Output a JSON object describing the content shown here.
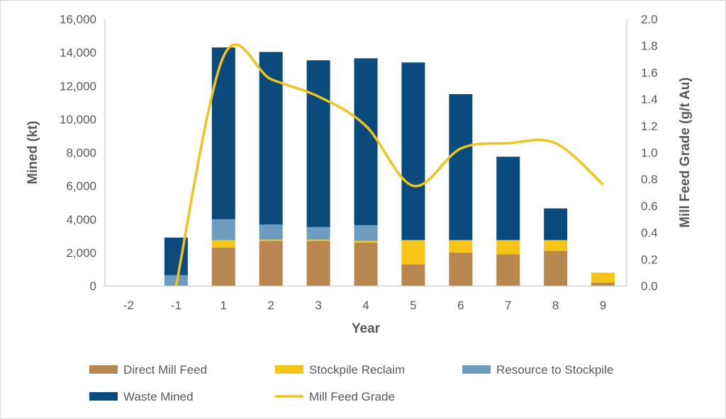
{
  "chart_data": {
    "type": "bar",
    "stacked": true,
    "title": "",
    "xlabel": "Year",
    "ylabel": "Mined (kt)",
    "y2label": "Mill Feed Grade (g/t Au)",
    "categories": [
      "-2",
      "-1",
      "1",
      "2",
      "3",
      "4",
      "5",
      "6",
      "7",
      "8",
      "9"
    ],
    "ylim": [
      0,
      16000
    ],
    "yticks": [
      "0",
      "2,000",
      "4,000",
      "6,000",
      "8,000",
      "10,000",
      "12,000",
      "14,000",
      "16,000"
    ],
    "y2lim": [
      0,
      2.0
    ],
    "y2ticks": [
      "0.0",
      "0.2",
      "0.4",
      "0.6",
      "0.8",
      "1.0",
      "1.2",
      "1.4",
      "1.6",
      "1.8",
      "2.0"
    ],
    "grid": false,
    "legend_position": "bottom",
    "series": [
      {
        "name": "Direct Mill Feed",
        "kind": "bar",
        "color": "#b8874f",
        "values": [
          0,
          0,
          2300,
          2700,
          2700,
          2600,
          1300,
          2000,
          1900,
          2100,
          200
        ]
      },
      {
        "name": "Stockpile Reclaim",
        "kind": "bar",
        "color": "#f5c518",
        "values": [
          0,
          0,
          450,
          80,
          80,
          100,
          1450,
          750,
          850,
          650,
          600
        ]
      },
      {
        "name": "Resource to Stockpile",
        "kind": "bar",
        "color": "#6d9cbf",
        "values": [
          0,
          650,
          1250,
          900,
          750,
          950,
          0,
          0,
          0,
          0,
          0
        ]
      },
      {
        "name": "Waste Mined",
        "kind": "bar",
        "color": "#0b4a7c",
        "values": [
          0,
          2250,
          10300,
          10350,
          10000,
          10000,
          10650,
          8750,
          5000,
          1900,
          0
        ]
      },
      {
        "name": "Mill Feed Grade",
        "kind": "line",
        "axis": "right",
        "color": "#f0c419",
        "values": [
          null,
          0.0,
          1.72,
          1.55,
          1.42,
          1.2,
          0.75,
          1.03,
          1.07,
          1.07,
          0.76
        ]
      }
    ]
  }
}
